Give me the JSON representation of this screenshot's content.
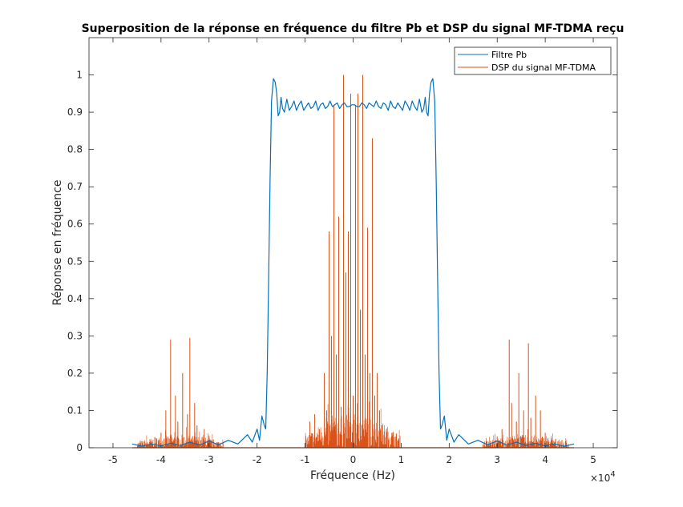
{
  "chart_data": {
    "type": "line",
    "title": "Superposition de la réponse en fréquence du filtre Pb et DSP du signal MF-TDMA reçu",
    "xlabel": "Fréquence (Hz)",
    "ylabel": "Réponse en fréquence",
    "x_exponent_label": "×10",
    "x_exponent": "4",
    "xlim": [
      -55000,
      55000
    ],
    "ylim": [
      0,
      1.1
    ],
    "x_ticks": [
      -50000,
      -40000,
      -30000,
      -20000,
      -10000,
      0,
      10000,
      20000,
      30000,
      40000,
      50000
    ],
    "x_tick_labels": [
      "-5",
      "-4",
      "-3",
      "-2",
      "-1",
      "0",
      "1",
      "2",
      "3",
      "4",
      "5"
    ],
    "y_ticks": [
      0,
      0.1,
      0.2,
      0.3,
      0.4,
      0.5,
      0.6,
      0.7,
      0.8,
      0.9,
      1
    ],
    "y_tick_labels": [
      "0",
      "0.1",
      "0.2",
      "0.3",
      "0.4",
      "0.5",
      "0.6",
      "0.7",
      "0.8",
      "0.9",
      "1"
    ],
    "grid": false,
    "legend_position": "top-right",
    "series": [
      {
        "name": "Filtre Pb",
        "color": "#0072BD",
        "x": [
          -46000,
          -44000,
          -42000,
          -40000,
          -38000,
          -36000,
          -34000,
          -32000,
          -30000,
          -28000,
          -26000,
          -24000,
          -22000,
          -21000,
          -20000,
          -19500,
          -19000,
          -18500,
          -18200,
          -17900,
          -17600,
          -17300,
          -17000,
          -16600,
          -16200,
          -15900,
          -15600,
          -15300,
          -15000,
          -14700,
          -14300,
          -13800,
          -13300,
          -12800,
          -12300,
          -11800,
          -11300,
          -10800,
          -10300,
          -9800,
          -9300,
          -8800,
          -8300,
          -7800,
          -7300,
          -6800,
          -6300,
          -5800,
          -5300,
          -4800,
          -4300,
          -3800,
          -3300,
          -2800,
          -2300,
          -1800,
          -1300,
          -800,
          -300,
          0,
          300,
          800,
          1300,
          1800,
          2300,
          2800,
          3300,
          3800,
          4300,
          4800,
          5300,
          5800,
          6300,
          6800,
          7300,
          7800,
          8300,
          8800,
          9300,
          9800,
          10300,
          10800,
          11300,
          11800,
          12300,
          12800,
          13300,
          13800,
          14300,
          14700,
          15000,
          15300,
          15600,
          15900,
          16200,
          16600,
          17000,
          17300,
          17600,
          17900,
          18200,
          18500,
          19000,
          19500,
          20000,
          21000,
          22000,
          24000,
          26000,
          28000,
          30000,
          32000,
          34000,
          36000,
          38000,
          40000,
          42000,
          44000,
          46000
        ],
        "y": [
          0.01,
          0.004,
          0.01,
          0.005,
          0.012,
          0.006,
          0.015,
          0.007,
          0.018,
          0.008,
          0.02,
          0.01,
          0.035,
          0.015,
          0.05,
          0.02,
          0.085,
          0.06,
          0.05,
          0.2,
          0.45,
          0.72,
          0.93,
          0.99,
          0.98,
          0.95,
          0.89,
          0.9,
          0.94,
          0.91,
          0.9,
          0.935,
          0.905,
          0.915,
          0.93,
          0.905,
          0.92,
          0.93,
          0.905,
          0.915,
          0.925,
          0.91,
          0.915,
          0.93,
          0.905,
          0.92,
          0.925,
          0.91,
          0.915,
          0.93,
          0.915,
          0.92,
          0.925,
          0.91,
          0.92,
          0.925,
          0.915,
          0.915,
          0.92,
          0.92,
          0.92,
          0.915,
          0.915,
          0.925,
          0.92,
          0.91,
          0.925,
          0.92,
          0.915,
          0.93,
          0.915,
          0.91,
          0.925,
          0.92,
          0.905,
          0.93,
          0.915,
          0.91,
          0.925,
          0.915,
          0.905,
          0.93,
          0.92,
          0.905,
          0.93,
          0.915,
          0.905,
          0.935,
          0.9,
          0.91,
          0.94,
          0.9,
          0.89,
          0.95,
          0.98,
          0.99,
          0.93,
          0.72,
          0.45,
          0.2,
          0.05,
          0.06,
          0.085,
          0.02,
          0.05,
          0.015,
          0.035,
          0.01,
          0.02,
          0.008,
          0.018,
          0.007,
          0.015,
          0.006,
          0.012,
          0.005,
          0.01,
          0.004,
          0.01
        ]
      },
      {
        "name": "DSP du signal MF-TDMA",
        "color": "#D95319",
        "bands": [
          {
            "x_range": [
              -45000,
              -27000
            ],
            "noise_level": 0.015,
            "center_noise": 0.035
          },
          {
            "x_range": [
              -10000,
              10000
            ],
            "noise_level": 0.03,
            "center_noise": 0.09
          },
          {
            "x_range": [
              27000,
              45000
            ],
            "noise_level": 0.015,
            "center_noise": 0.035
          }
        ],
        "peaks": {
          "x": [
            -40000,
            -39000,
            -38000,
            -37000,
            -36500,
            -35500,
            -34500,
            -34000,
            -33000,
            -32500,
            -31000,
            -30000,
            -9000,
            -8000,
            -7000,
            -6000,
            -5500,
            -5000,
            -4500,
            -4000,
            -3500,
            -3000,
            -2500,
            -2000,
            -1500,
            -1000,
            -500,
            0,
            500,
            1000,
            1500,
            2000,
            2500,
            3000,
            3500,
            4000,
            4500,
            5000,
            5500,
            6000,
            7000,
            8000,
            9000,
            30000,
            31000,
            32500,
            33000,
            34000,
            34500,
            35500,
            36500,
            37000,
            38000,
            39000,
            40000
          ],
          "y": [
            0.04,
            0.1,
            0.29,
            0.14,
            0.07,
            0.2,
            0.09,
            0.295,
            0.12,
            0.06,
            0.05,
            0.03,
            0.07,
            0.09,
            0.05,
            0.2,
            0.1,
            0.58,
            0.3,
            0.92,
            0.25,
            0.62,
            0.11,
            1.0,
            0.47,
            0.58,
            0.95,
            0.14,
            0.92,
            0.95,
            0.37,
            1.0,
            0.25,
            0.59,
            0.2,
            0.83,
            0.14,
            0.2,
            0.1,
            0.06,
            0.04,
            0.03,
            0.03,
            0.03,
            0.05,
            0.29,
            0.12,
            0.07,
            0.2,
            0.1,
            0.28,
            0.08,
            0.14,
            0.1,
            0.04
          ]
        }
      }
    ]
  }
}
